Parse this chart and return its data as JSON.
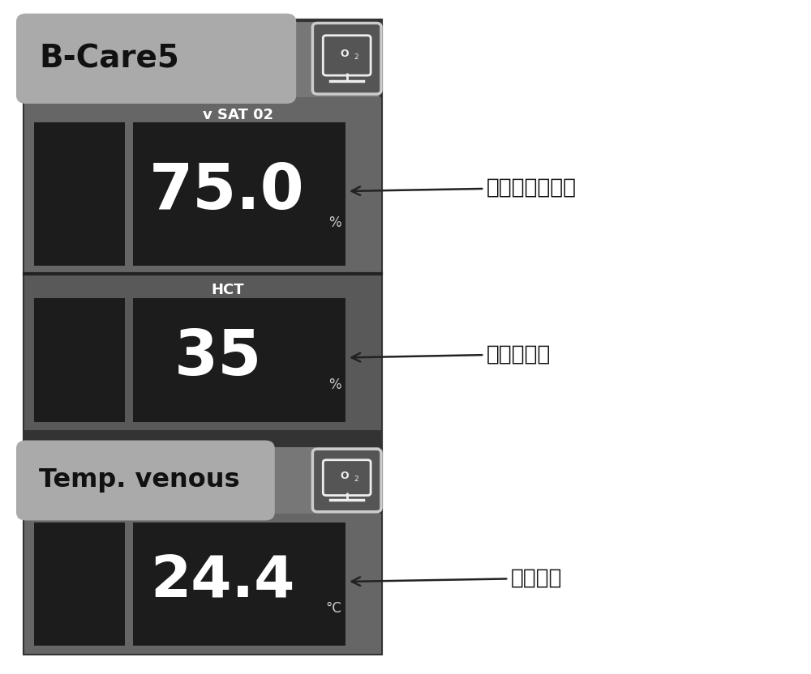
{
  "bg_color": "#ffffff",
  "outer_bg": "#777777",
  "panel_bg": "#666666",
  "panel_bg2": "#595959",
  "header_bg": "#aaaaaa",
  "header_bg2": "#aaaaaa",
  "black_box": "#1c1c1c",
  "dark_section": "#4a4a4a",
  "text_white": "#ffffff",
  "text_black": "#111111",
  "border_color": "#333333",
  "title1": "B-Care5",
  "title2": "Temp. venous",
  "label1": "v SAT 02",
  "label2": "HCT",
  "value1": "75.0",
  "unit1": "%",
  "value2": "35",
  "unit2": "%",
  "value3": "24.4",
  "unit3": "°C",
  "annotation1": "静脉血氧饱和度",
  "annotation2": "红细胞压积",
  "annotation3": "静脉温度"
}
